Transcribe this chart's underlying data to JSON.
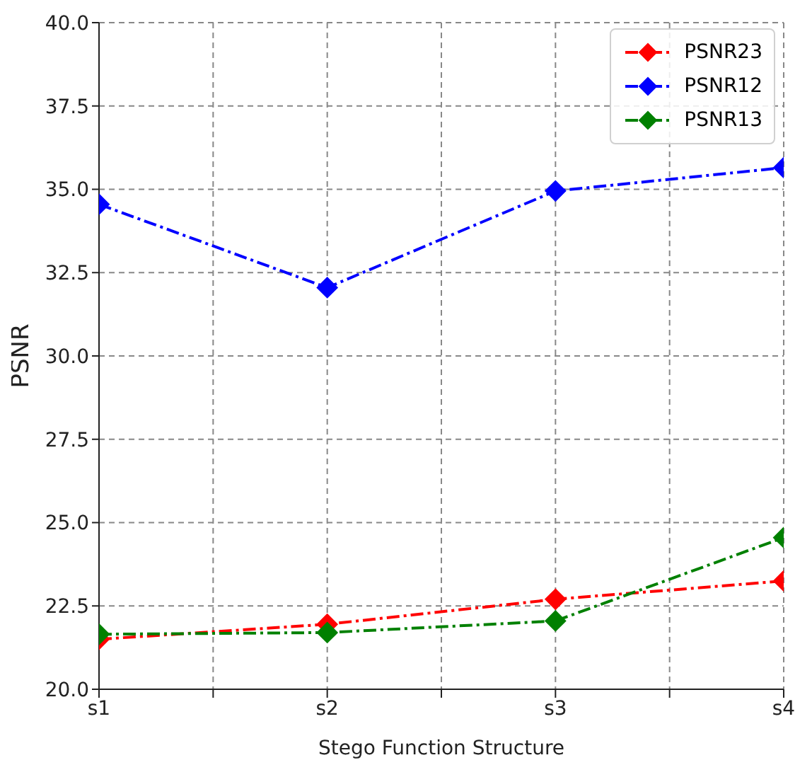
{
  "chart_data": {
    "type": "line",
    "xlabel": "Stego Function Structure",
    "ylabel": "PSNR",
    "categories": [
      "s1",
      "s2",
      "s3",
      "s4"
    ],
    "series": [
      {
        "name": "PSNR23",
        "color": "#ff0000",
        "values": [
          21.5,
          21.95,
          22.7,
          23.25
        ]
      },
      {
        "name": "PSNR12",
        "color": "#0000ff",
        "values": [
          34.55,
          32.05,
          34.95,
          35.65
        ]
      },
      {
        "name": "PSNR13",
        "color": "#008000",
        "values": [
          21.65,
          21.7,
          22.05,
          24.55
        ]
      }
    ],
    "ylim": [
      20,
      40
    ],
    "yticks": [
      {
        "value": 20,
        "label": "20.0"
      },
      {
        "value": 22.5,
        "label": "22.5"
      },
      {
        "value": 25,
        "label": "25.0"
      },
      {
        "value": 27.5,
        "label": "27.5"
      },
      {
        "value": 30,
        "label": "30.0"
      },
      {
        "value": 32.5,
        "label": "32.5"
      },
      {
        "value": 35,
        "label": "35.0"
      },
      {
        "value": 37.5,
        "label": "37.5"
      },
      {
        "value": 40,
        "label": "40.0"
      }
    ],
    "grid": true,
    "legend": "top right",
    "marker": "diamond",
    "line_style": "dashed"
  }
}
